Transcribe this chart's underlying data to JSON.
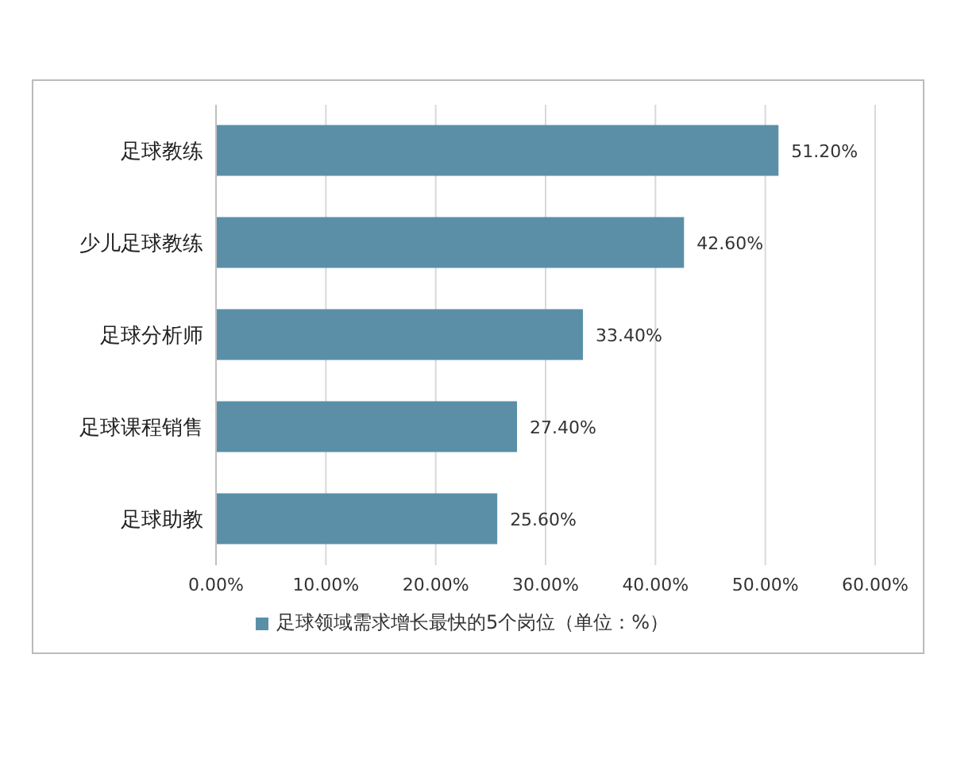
{
  "chart_data": {
    "type": "bar",
    "orientation": "horizontal",
    "categories": [
      "足球教练",
      "少儿足球教练",
      "足球分析师",
      "足球课程销售",
      "足球助教"
    ],
    "series": [
      {
        "name": "足球领域需求增长最快的5个岗位（单位：%）",
        "color": "#5b8fa8",
        "values": [
          51.2,
          42.6,
          33.4,
          27.4,
          25.6
        ],
        "value_labels": [
          "51.20%",
          "42.60%",
          "33.40%",
          "27.40%",
          "25.60%"
        ]
      }
    ],
    "xlim": [
      0,
      60
    ],
    "xticks": [
      {
        "value": 0,
        "label": "0.00%"
      },
      {
        "value": 10,
        "label": "10.00%"
      },
      {
        "value": 20,
        "label": "20.00%"
      },
      {
        "value": 30,
        "label": "30.00%"
      },
      {
        "value": 40,
        "label": "40.00%"
      },
      {
        "value": 50,
        "label": "50.00%"
      },
      {
        "value": 60,
        "label": "60.00%"
      }
    ],
    "grid": "x",
    "legend": "bottom"
  }
}
